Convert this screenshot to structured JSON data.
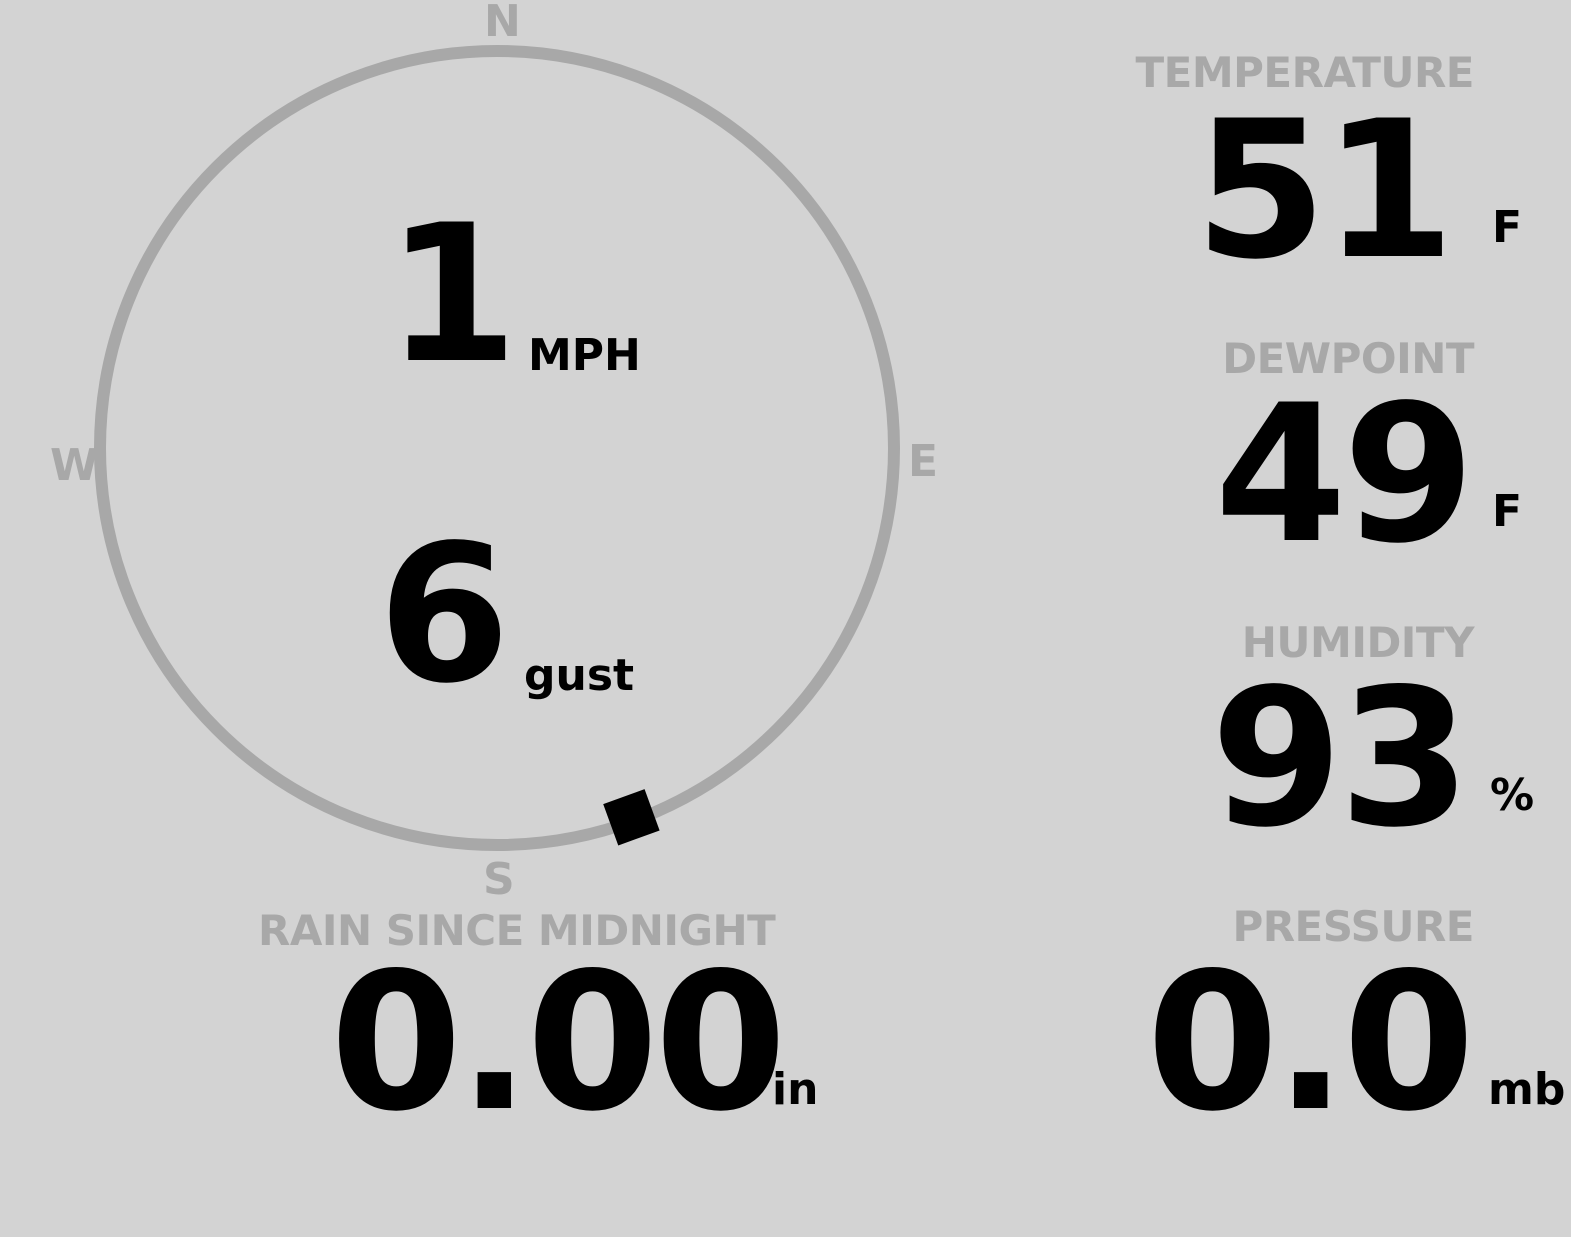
{
  "colors": {
    "background": "#d3d3d3",
    "muted": "#a8a8a8",
    "value": "#000000"
  },
  "wind": {
    "speed": "1",
    "speed_unit": "MPH",
    "gust": "6",
    "gust_unit": "gust",
    "direction_degrees": 160,
    "compass": {
      "n": "N",
      "e": "E",
      "s": "S",
      "w": "W"
    }
  },
  "rain": {
    "label": "RAIN SINCE MIDNIGHT",
    "value": "0.00",
    "unit": "in"
  },
  "temperature": {
    "label": "TEMPERATURE",
    "value": "51",
    "unit": "F"
  },
  "dewpoint": {
    "label": "DEWPOINT",
    "value": "49",
    "unit": "F"
  },
  "humidity": {
    "label": "HUMIDITY",
    "value": "93",
    "unit": "%"
  },
  "pressure": {
    "label": "PRESSURE",
    "value": "0.0",
    "unit": "mb"
  }
}
